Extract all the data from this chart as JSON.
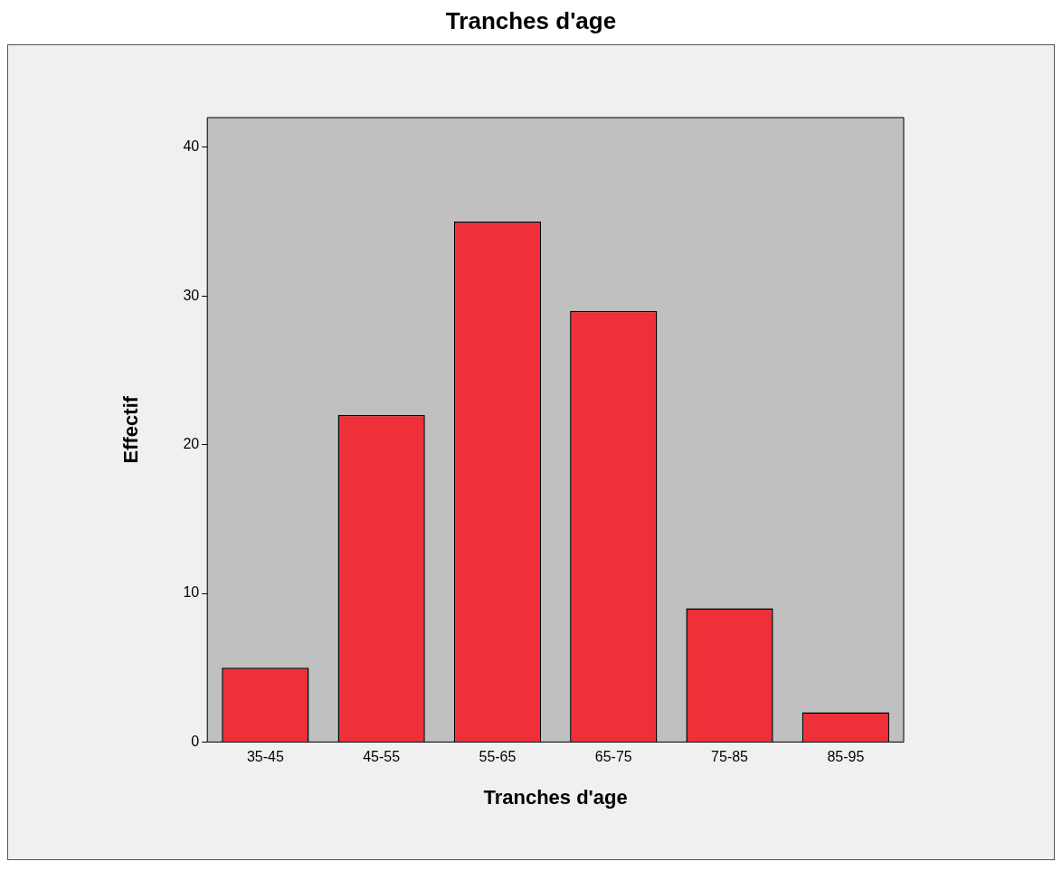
{
  "chart_data": {
    "type": "bar",
    "title": "Tranches d'age",
    "xlabel": "Tranches d'age",
    "ylabel": "Effectif",
    "categories": [
      "35-45",
      "45-55",
      "55-65",
      "65-75",
      "75-85",
      "85-95"
    ],
    "values": [
      5,
      22,
      35,
      29,
      9,
      2
    ],
    "color": "#ee3039",
    "ylim": [
      0,
      42
    ],
    "yticks": [
      0,
      10,
      20,
      30,
      40
    ],
    "grid": false,
    "legend": false
  }
}
